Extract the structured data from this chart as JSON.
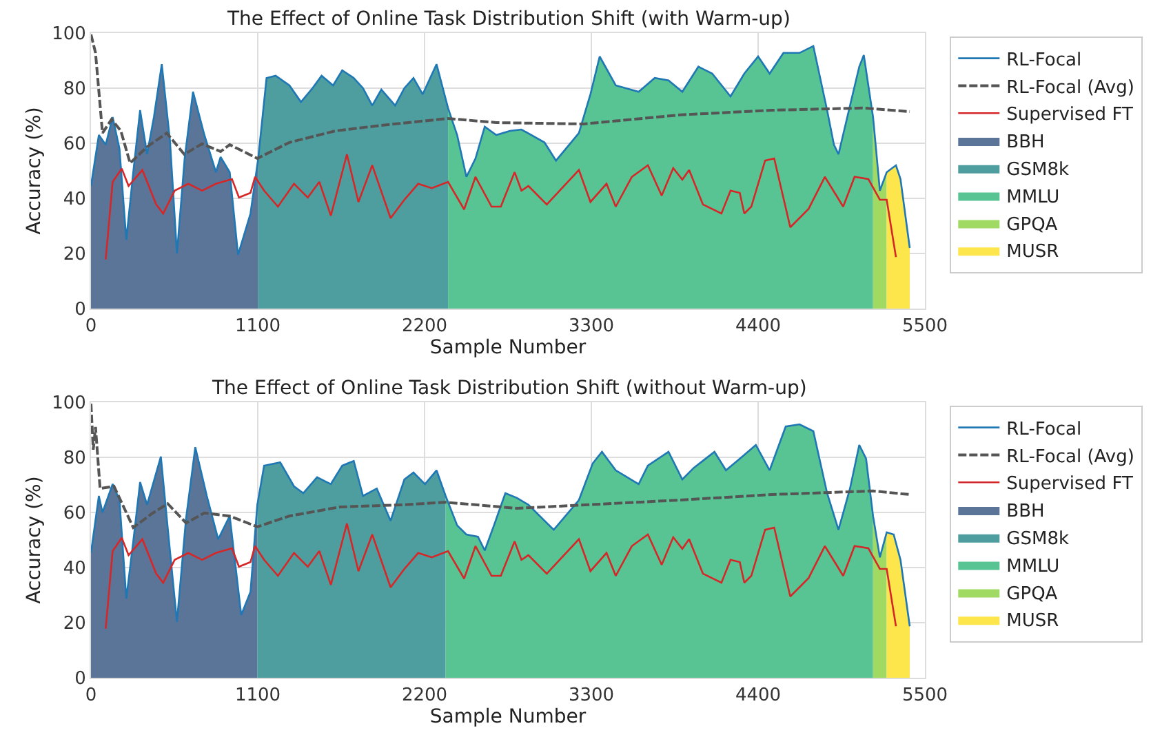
{
  "chart_data": [
    {
      "type": "line",
      "title": "The Effect of Online Task Distribution Shift (with Warm-up)",
      "xlabel": "Sample Number",
      "ylabel": "Accuracy (%)",
      "xlim": [
        0,
        5500
      ],
      "xticks": [
        0,
        1100,
        2200,
        3300,
        4400,
        5500
      ],
      "ylim": [
        0,
        100
      ],
      "yticks": [
        0,
        20,
        40,
        60,
        80,
        100
      ],
      "grid": true,
      "legend": "right",
      "marker": "none",
      "series": [
        {
          "name": "RL-Focal",
          "type": "line",
          "line_style": "solid",
          "color": "#1f77b4",
          "x": [
            0,
            52,
            97,
            143,
            188,
            233,
            279,
            324,
            370,
            415,
            467,
            521,
            567,
            618,
            673,
            748,
            824,
            855,
            915,
            970,
            1052,
            1103,
            1158,
            1218,
            1309,
            1385,
            1461,
            1521,
            1597,
            1657,
            1733,
            1794,
            1855,
            1915,
            2006,
            2067,
            2127,
            2188,
            2279,
            2355,
            2415,
            2476,
            2536,
            2597,
            2673,
            2764,
            2839,
            2991,
            3067,
            3218,
            3294,
            3355,
            3461,
            3612,
            3718,
            3809,
            3900,
            4006,
            4097,
            4218,
            4309,
            4400,
            4476,
            4567,
            4673,
            4764,
            4855,
            4900,
            4930,
            5006,
            5067,
            5097,
            5158,
            5203,
            5248,
            5309,
            5339,
            5400
          ],
          "values": [
            44.5,
            63,
            59.5,
            69.5,
            58,
            25,
            49.5,
            72,
            56,
            69.5,
            88.7,
            61,
            20,
            54.5,
            78.7,
            63,
            49.5,
            55,
            49.5,
            19.5,
            34.5,
            54.5,
            83.7,
            84.5,
            81,
            75,
            80,
            84.5,
            81,
            86.5,
            83.7,
            80,
            73.7,
            79.5,
            73.7,
            80,
            83.7,
            77.8,
            88.7,
            72.8,
            63,
            47.8,
            54.5,
            66,
            63,
            64.5,
            65,
            60.3,
            53.7,
            63.7,
            77.8,
            91.5,
            81,
            78.7,
            83.7,
            82.8,
            78.7,
            87.8,
            85.3,
            77,
            85.3,
            91.5,
            85.3,
            92.8,
            92.8,
            95.3,
            72,
            59.5,
            56,
            73.7,
            87.8,
            92,
            69.5,
            42.8,
            49.5,
            52,
            47,
            22
          ]
        },
        {
          "name": "RL-Focal (Avg)",
          "type": "line",
          "line_style": "dashed",
          "color": "#555555",
          "x": [
            0,
            30,
            76,
            136,
            197,
            258,
            370,
            500,
            615,
            733,
            855,
            915,
            1097,
            1309,
            1612,
            1915,
            2355,
            2673,
            3249,
            3885,
            4491,
            5097,
            5400
          ],
          "values": [
            99.5,
            92.8,
            63.7,
            68.7,
            64.5,
            52.8,
            58.7,
            63.7,
            56,
            59.8,
            57,
            59.5,
            54.5,
            60.3,
            64.5,
            66.5,
            69,
            67.5,
            67,
            70.3,
            72,
            72.8,
            71.5
          ]
        },
        {
          "name": "Supervised FT",
          "type": "line",
          "line_style": "solid",
          "color": "#d62728",
          "x": [
            97,
            143,
            203,
            248,
            339,
            430,
            476,
            552,
            642,
            733,
            824,
            930,
            976,
            1052,
            1082,
            1142,
            1233,
            1339,
            1430,
            1506,
            1582,
            1688,
            1764,
            1855,
            1976,
            2067,
            2158,
            2248,
            2355,
            2461,
            2536,
            2642,
            2703,
            2794,
            2839,
            2885,
            3006,
            3218,
            3294,
            3400,
            3461,
            3567,
            3673,
            3764,
            3840,
            3900,
            3945,
            4036,
            4158,
            4218,
            4279,
            4309,
            4355,
            4446,
            4506,
            4612,
            4733,
            4840,
            4961,
            5036,
            5127,
            5203,
            5248,
            5309
          ],
          "values": [
            17.8,
            46,
            50.8,
            44.5,
            50.3,
            37.8,
            34.5,
            42.8,
            45.3,
            42.8,
            45.3,
            47,
            40.3,
            42,
            47.8,
            42.8,
            37,
            45.3,
            40.3,
            46,
            33.7,
            56,
            38.7,
            52,
            32.8,
            39.5,
            45.3,
            43.7,
            46,
            36,
            47.8,
            37,
            37,
            49.5,
            42.8,
            44.5,
            37.8,
            50.3,
            38.7,
            45.3,
            37,
            47.8,
            52,
            41,
            51,
            46.8,
            50.3,
            37.8,
            34.5,
            42.8,
            42,
            34.5,
            37,
            53.7,
            54.5,
            29.5,
            36.2,
            47.8,
            37,
            47.8,
            47,
            39.5,
            39.5,
            18.7
          ]
        },
        {
          "name": "BBH",
          "type": "area",
          "color": "#5b7599",
          "x": [
            0,
            52,
            97,
            143,
            188,
            233,
            279,
            324,
            370,
            415,
            467,
            521,
            567,
            618,
            673,
            748,
            824,
            855,
            915,
            970,
            1052,
            1103
          ],
          "values": [
            44.5,
            63,
            59.5,
            69.5,
            58,
            25,
            49.5,
            72,
            56,
            69.5,
            88.7,
            61,
            20,
            54.5,
            78.7,
            63,
            49.5,
            55,
            49.5,
            19.5,
            34.5,
            54.5
          ]
        },
        {
          "name": "GSM8k",
          "type": "area",
          "color": "#4e9ea0",
          "x": [
            1103,
            1158,
            1218,
            1309,
            1385,
            1461,
            1521,
            1597,
            1657,
            1733,
            1794,
            1855,
            1915,
            2006,
            2067,
            2127,
            2188,
            2279,
            2355
          ],
          "values": [
            54.5,
            83.7,
            84.5,
            81,
            75,
            80,
            84.5,
            81,
            86.5,
            83.7,
            80,
            73.7,
            79.5,
            73.7,
            80,
            83.7,
            77.8,
            88.7,
            72.8
          ]
        },
        {
          "name": "MMLU",
          "type": "area",
          "color": "#58c494",
          "x": [
            2355,
            2415,
            2476,
            2536,
            2597,
            2673,
            2764,
            2839,
            2991,
            3067,
            3218,
            3294,
            3355,
            3461,
            3612,
            3718,
            3809,
            3900,
            4006,
            4097,
            4218,
            4309,
            4400,
            4476,
            4567,
            4673,
            4764,
            4855,
            4900,
            4930,
            5006,
            5067,
            5097,
            5158
          ],
          "values": [
            72.8,
            63,
            47.8,
            54.5,
            66,
            63,
            64.5,
            65,
            60.3,
            53.7,
            63.7,
            77.8,
            91.5,
            81,
            78.7,
            83.7,
            82.8,
            78.7,
            87.8,
            85.3,
            77,
            85.3,
            91.5,
            85.3,
            92.8,
            92.8,
            95.3,
            72,
            59.5,
            56,
            73.7,
            87.8,
            92,
            69.5
          ]
        },
        {
          "name": "GPQA",
          "type": "area",
          "color": "#a0da63",
          "x": [
            5158,
            5203,
            5248
          ],
          "values": [
            69.5,
            42.8,
            49.5
          ]
        },
        {
          "name": "MUSR",
          "type": "area",
          "color": "#fde64b",
          "x": [
            5248,
            5309,
            5339,
            5400
          ],
          "values": [
            49.5,
            52,
            47,
            22
          ]
        }
      ]
    },
    {
      "type": "line",
      "title": "The Effect of Online Task Distribution Shift (without Warm-up)",
      "xlabel": "Sample Number",
      "ylabel": "Accuracy (%)",
      "xlim": [
        0,
        5500
      ],
      "xticks": [
        0,
        1100,
        2200,
        3300,
        4400,
        5500
      ],
      "ylim": [
        0,
        100
      ],
      "yticks": [
        0,
        20,
        40,
        60,
        80,
        100
      ],
      "grid": true,
      "legend": "right",
      "marker": "none",
      "series": [
        {
          "name": "RL-Focal",
          "type": "line",
          "line_style": "solid",
          "color": "#1f77b4",
          "x": [
            0,
            52,
            76,
            143,
            188,
            233,
            279,
            324,
            370,
            461,
            506,
            567,
            627,
            688,
            764,
            839,
            915,
            991,
            1052,
            1097,
            1142,
            1248,
            1339,
            1400,
            1491,
            1582,
            1657,
            1733,
            1794,
            1885,
            1976,
            2067,
            2127,
            2203,
            2279,
            2339,
            2415,
            2476,
            2552,
            2597,
            2658,
            2733,
            2809,
            2885,
            3052,
            3218,
            3309,
            3370,
            3461,
            3612,
            3673,
            3809,
            3900,
            3976,
            4112,
            4188,
            4279,
            4385,
            4476,
            4582,
            4673,
            4764,
            4855,
            4930,
            5006,
            5067,
            5112,
            5158,
            5203,
            5248,
            5294,
            5339,
            5400
          ],
          "values": [
            45.3,
            66,
            60,
            70.3,
            64.5,
            28.7,
            49.5,
            71,
            62.8,
            80.3,
            54.5,
            20.3,
            57.8,
            83.7,
            66,
            50.3,
            58.7,
            22.8,
            31.2,
            62.8,
            77,
            78.2,
            69.5,
            67,
            72.8,
            70.3,
            77,
            78.7,
            66,
            68.7,
            57,
            72,
            74.5,
            70.3,
            75.3,
            66,
            55.3,
            52,
            51.2,
            46.2,
            55.3,
            67,
            65.3,
            62.8,
            53.7,
            64.5,
            77.8,
            82,
            75.3,
            70.3,
            77,
            82,
            72,
            76.2,
            82,
            75.3,
            79.5,
            84.5,
            75.3,
            91.2,
            92,
            89.5,
            67,
            53.7,
            68.7,
            84.5,
            79.5,
            58.7,
            43.7,
            52.8,
            52,
            42.8,
            18.7
          ]
        },
        {
          "name": "RL-Focal (Avg)",
          "type": "line",
          "line_style": "dashed",
          "color": "#555555",
          "x": [
            0,
            15,
            30,
            60,
            152,
            279,
            400,
            506,
            627,
            748,
            915,
            1097,
            1309,
            1642,
            2067,
            2339,
            2809,
            3279,
            3885,
            4491,
            5158,
            5400
          ],
          "values": [
            99.5,
            82.8,
            91,
            68.7,
            69.5,
            54.5,
            59.5,
            63.2,
            56.2,
            59.8,
            58.7,
            54.8,
            58.7,
            62,
            62.8,
            63.7,
            61.5,
            62.8,
            64.5,
            66.5,
            67.8,
            66.5
          ]
        },
        {
          "name": "Supervised FT",
          "type": "line",
          "line_style": "solid",
          "color": "#d62728",
          "x": [
            97,
            143,
            203,
            248,
            339,
            430,
            476,
            552,
            642,
            733,
            824,
            930,
            976,
            1052,
            1082,
            1142,
            1233,
            1339,
            1430,
            1506,
            1582,
            1688,
            1764,
            1855,
            1976,
            2067,
            2158,
            2248,
            2355,
            2461,
            2536,
            2642,
            2703,
            2794,
            2839,
            2885,
            3006,
            3218,
            3294,
            3400,
            3461,
            3567,
            3673,
            3764,
            3840,
            3900,
            3945,
            4036,
            4158,
            4218,
            4279,
            4309,
            4355,
            4446,
            4506,
            4612,
            4733,
            4840,
            4961,
            5036,
            5127,
            5203,
            5248,
            5309
          ],
          "values": [
            17.8,
            46,
            50.8,
            44.5,
            50.3,
            37.8,
            34.5,
            42.8,
            45.3,
            42.8,
            45.3,
            47,
            40.3,
            42,
            47.8,
            42.8,
            37,
            45.3,
            40.3,
            46,
            33.7,
            56,
            38.7,
            52,
            32.8,
            39.5,
            45.3,
            43.7,
            46,
            36,
            47.8,
            37,
            37,
            49.5,
            42.8,
            44.5,
            37.8,
            50.3,
            38.7,
            45.3,
            37,
            47.8,
            52,
            41,
            51,
            46.8,
            50.3,
            37.8,
            34.5,
            42.8,
            42,
            34.5,
            37,
            53.7,
            54.5,
            29.5,
            36.2,
            47.8,
            37,
            47.8,
            47,
            39.5,
            39.5,
            18.7
          ]
        },
        {
          "name": "BBH",
          "type": "area",
          "color": "#5b7599",
          "x": [
            0,
            52,
            76,
            143,
            188,
            233,
            279,
            324,
            370,
            461,
            506,
            567,
            627,
            688,
            764,
            839,
            915,
            991,
            1052,
            1097
          ],
          "values": [
            45.3,
            66,
            60,
            70.3,
            64.5,
            28.7,
            49.5,
            71,
            62.8,
            80.3,
            54.5,
            20.3,
            57.8,
            83.7,
            66,
            50.3,
            58.7,
            22.8,
            31.2,
            62.8
          ]
        },
        {
          "name": "GSM8k",
          "type": "area",
          "color": "#4e9ea0",
          "x": [
            1097,
            1142,
            1248,
            1339,
            1400,
            1491,
            1582,
            1657,
            1733,
            1794,
            1885,
            1976,
            2067,
            2127,
            2203,
            2279,
            2339
          ],
          "values": [
            62.8,
            77,
            78.2,
            69.5,
            67,
            72.8,
            70.3,
            77,
            78.7,
            66,
            68.7,
            57,
            72,
            74.5,
            70.3,
            75.3,
            66
          ]
        },
        {
          "name": "MMLU",
          "type": "area",
          "color": "#58c494",
          "x": [
            2339,
            2415,
            2476,
            2552,
            2597,
            2658,
            2733,
            2809,
            2885,
            3052,
            3218,
            3309,
            3370,
            3461,
            3612,
            3673,
            3809,
            3900,
            3976,
            4112,
            4188,
            4279,
            4385,
            4476,
            4582,
            4673,
            4764,
            4855,
            4930,
            5006,
            5067,
            5112,
            5158
          ],
          "values": [
            66,
            55.3,
            52,
            51.2,
            46.2,
            55.3,
            67,
            65.3,
            62.8,
            53.7,
            64.5,
            77.8,
            82,
            75.3,
            70.3,
            77,
            82,
            72,
            76.2,
            82,
            75.3,
            79.5,
            84.5,
            75.3,
            91.2,
            92,
            89.5,
            67,
            53.7,
            68.7,
            84.5,
            79.5,
            58.7
          ]
        },
        {
          "name": "GPQA",
          "type": "area",
          "color": "#a0da63",
          "x": [
            5158,
            5203,
            5248
          ],
          "values": [
            58.7,
            43.7,
            52.8
          ]
        },
        {
          "name": "MUSR",
          "type": "area",
          "color": "#fde64b",
          "x": [
            5248,
            5294,
            5339,
            5400
          ],
          "values": [
            52.8,
            52,
            42.8,
            18.7
          ]
        }
      ]
    }
  ]
}
